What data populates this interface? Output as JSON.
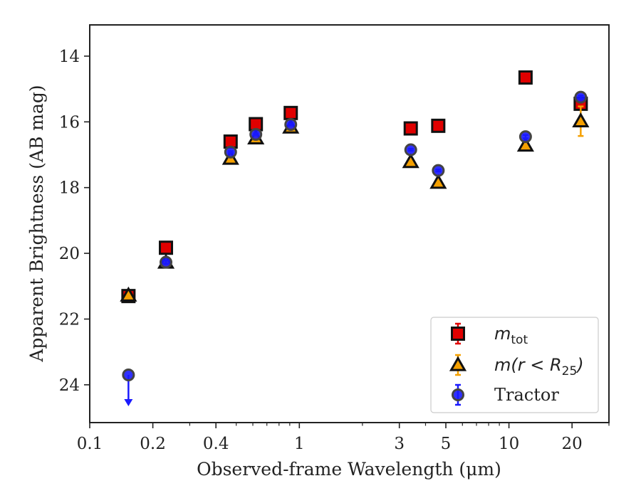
{
  "chart_data": {
    "type": "scatter",
    "xlabel": "Observed-frame Wavelength (μm)",
    "ylabel": "Apparent Brightness (AB mag)",
    "xscale": "log",
    "xlim": [
      0.1,
      30
    ],
    "ylim": [
      25.15,
      13.05
    ],
    "y_inverted": true,
    "x_ticks": [
      0.1,
      0.2,
      0.4,
      1,
      3,
      5,
      10,
      20
    ],
    "x_tick_labels": [
      "0.1",
      "0.2",
      "0.4",
      "1",
      "3",
      "5",
      "10",
      "20"
    ],
    "y_ticks": [
      14,
      16,
      18,
      20,
      22,
      24
    ],
    "y_tick_labels": [
      "14",
      "16",
      "18",
      "20",
      "22",
      "24"
    ],
    "legend_position": "lower-right",
    "series": [
      {
        "name": "m_tot",
        "legend_parts": {
          "main": "m",
          "sub": "tot"
        },
        "marker": "square",
        "fill_color": "#e00000",
        "edge_color": "#111111",
        "error_color": "#e00000",
        "x": [
          0.153,
          0.231,
          0.47,
          0.62,
          0.91,
          3.4,
          4.6,
          12.0,
          22.0
        ],
        "y": [
          21.3,
          19.83,
          16.6,
          16.07,
          15.73,
          16.2,
          16.12,
          14.65,
          15.45
        ],
        "yerr": [
          0.05,
          0.05,
          0.03,
          0.03,
          0.03,
          0.03,
          0.03,
          0.03,
          0.1
        ]
      },
      {
        "name": "m(r < R25)",
        "legend_parts": {
          "main": "m(r < R",
          "sub": "25",
          "tail": ")"
        },
        "marker": "triangle",
        "fill_color": "#f5a000",
        "edge_color": "#111111",
        "error_color": "#f5a000",
        "x": [
          0.153,
          0.231,
          0.47,
          0.62,
          0.91,
          3.4,
          4.6,
          12.0,
          22.0
        ],
        "y": [
          21.28,
          20.28,
          17.12,
          16.5,
          16.17,
          17.22,
          17.85,
          16.72,
          15.98
        ],
        "yerr": [
          0.05,
          0.05,
          0.05,
          0.05,
          0.05,
          0.05,
          0.05,
          0.1,
          0.45
        ]
      },
      {
        "name": "Tractor",
        "marker": "circle",
        "fill_color": "#1a1aff",
        "edge_color": "#444444",
        "error_color": "#1a1aff",
        "x": [
          0.153,
          0.231,
          0.47,
          0.62,
          0.91,
          3.4,
          4.6,
          12.0,
          22.0
        ],
        "y": [
          23.7,
          20.27,
          16.92,
          16.38,
          16.08,
          16.85,
          17.48,
          16.45,
          15.25
        ],
        "yerr": [
          0.0,
          0.05,
          0.03,
          0.03,
          0.03,
          0.03,
          0.03,
          0.05,
          0.05
        ],
        "upper_limit": [
          true,
          false,
          false,
          false,
          false,
          false,
          false,
          false,
          false
        ]
      }
    ]
  }
}
